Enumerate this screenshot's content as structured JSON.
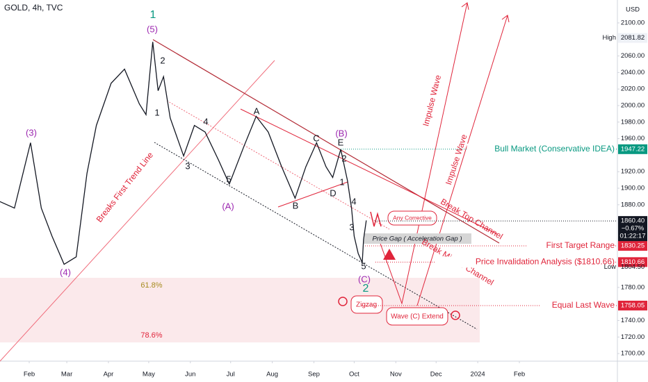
{
  "chart_data": {
    "type": "line",
    "title": "GOLD, 4h, TVC",
    "y_unit": "USD",
    "color": "#131722",
    "grid": false,
    "x": [
      10,
      21,
      33,
      41,
      49,
      58,
      67,
      75,
      82,
      93,
      103,
      114,
      119,
      124,
      128,
      132,
      137,
      147,
      155,
      163,
      173,
      181,
      192,
      201,
      210,
      220,
      230,
      238,
      246,
      253,
      258,
      264,
      269,
      272,
      274,
      277,
      280,
      281,
      283
    ],
    "values": [
      1884,
      1876,
      1955,
      1876,
      1842,
      1808,
      1817,
      1918,
      1976,
      2027,
      2044,
      2002,
      1989,
      2077,
      2018,
      2035,
      1985,
      1939,
      1976,
      1968,
      1934,
      1905,
      1951,
      1987,
      1968,
      1926,
      1888,
      1926,
      1955,
      1926,
      1913,
      1947,
      1909,
      1876,
      1842,
      1821,
      1810,
      1838,
      1861
    ],
    "xlim": [
      10.25,
      470
    ],
    "ylim": [
      1690.8,
      2127.7
    ],
    "xticks": [
      {
        "value": 32,
        "label": "Feb"
      },
      {
        "value": 60,
        "label": "Mar"
      },
      {
        "value": 91,
        "label": "Apr"
      },
      {
        "value": 121,
        "label": "May"
      },
      {
        "value": 152,
        "label": "Jun"
      },
      {
        "value": 182,
        "label": "Jul"
      },
      {
        "value": 213,
        "label": "Aug"
      },
      {
        "value": 244,
        "label": "Sep"
      },
      {
        "value": 274,
        "label": "Oct"
      },
      {
        "value": 305,
        "label": "Nov"
      },
      {
        "value": 335,
        "label": "Dec"
      },
      {
        "value": 366,
        "label": "2024"
      },
      {
        "value": 397,
        "label": "Feb"
      }
    ],
    "yticks": [
      {
        "value": 2100,
        "label": "2100.00"
      },
      {
        "value": 2060,
        "label": "2060.00"
      },
      {
        "value": 2040,
        "label": "2040.00"
      },
      {
        "value": 2020,
        "label": "2020.00"
      },
      {
        "value": 2000,
        "label": "2000.00"
      },
      {
        "value": 1980,
        "label": "1980.00"
      },
      {
        "value": 1960,
        "label": "1960.00"
      },
      {
        "value": 1920,
        "label": "1920.00"
      },
      {
        "value": 1900,
        "label": "1900.00"
      },
      {
        "value": 1880,
        "label": "1880.00"
      },
      {
        "value": 1780,
        "label": "1780.00"
      },
      {
        "value": 1740,
        "label": "1740.00"
      },
      {
        "value": 1720,
        "label": "1720.00"
      },
      {
        "value": 1700,
        "label": "1700.00"
      }
    ],
    "last_price": {
      "value": 1860.4,
      "label": "1860.40",
      "change": {
        "value": -0.67,
        "label": "−0.67%"
      },
      "countdown": "01:22:17"
    },
    "high": {
      "name": "High",
      "value": 2081.82
    },
    "low": {
      "name": "Low",
      "value": 1804.5,
      "label": "1804.50"
    },
    "price_markers": [
      {
        "name": "Bull Market (Conservative IDEA)",
        "value": 1947.22,
        "color": "#089981"
      },
      {
        "name": "First Target Range",
        "value": 1830.25,
        "color": "#e0243a"
      },
      {
        "name": "Price Invalidation Analysis ($1810.66)",
        "value": 1810.66,
        "color": "#e0243a"
      },
      {
        "name": "Equal Last Wave",
        "value": 1758.05,
        "color": "#e0243a"
      }
    ],
    "wave_labels": [
      {
        "text": "1",
        "color": "#089981"
      },
      {
        "text": "(5)",
        "color": "#9c27b0"
      },
      {
        "text": "(3)",
        "color": "#9c27b0"
      },
      {
        "text": "(4)",
        "color": "#9c27b0"
      },
      {
        "text": "2",
        "color": "#131722"
      },
      {
        "text": "1",
        "color": "#131722"
      },
      {
        "text": "4",
        "color": "#131722"
      },
      {
        "text": "3",
        "color": "#131722"
      },
      {
        "text": "5",
        "color": "#131722"
      },
      {
        "text": "(A)",
        "color": "#9c27b0"
      },
      {
        "text": "A",
        "color": "#131722"
      },
      {
        "text": "B",
        "color": "#131722"
      },
      {
        "text": "C",
        "color": "#131722"
      },
      {
        "text": "(B)",
        "color": "#9c27b0"
      },
      {
        "text": "E",
        "color": "#131722"
      },
      {
        "text": "2",
        "color": "#131722"
      },
      {
        "text": "1",
        "color": "#131722"
      },
      {
        "text": "D",
        "color": "#131722"
      },
      {
        "text": "4",
        "color": "#131722"
      },
      {
        "text": "3",
        "color": "#131722"
      },
      {
        "text": "5",
        "color": "#131722"
      },
      {
        "text": "(C)",
        "color": "#9c27b0"
      },
      {
        "text": "2",
        "color": "#089981"
      }
    ],
    "annotations": {
      "trend_line": "Breaks First Trend Line",
      "impulse_1": "Impulse Wave",
      "impulse_2": "Impulse Wave",
      "top_channel": "Break Top Channel",
      "middle_channel": "Break Middle Channel",
      "any_corrective": "Any Corrective",
      "price_gap": "Price Gap ( Acceleration Gap )",
      "zigzag": "Zigzag",
      "wave_c_extend": "Wave (C) Extend",
      "fib_1": "61.8%",
      "fib_2": "78.6%"
    }
  }
}
